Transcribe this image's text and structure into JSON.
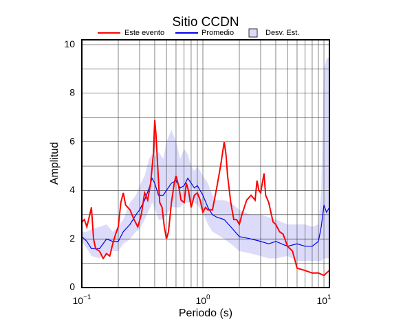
{
  "chart_data": {
    "type": "line",
    "title": "Sitio CCDN",
    "xlabel": "Periodo (s)",
    "ylabel": "Amplitud",
    "xscale": "log",
    "grid": true,
    "xlim": [
      0.1,
      11.1
    ],
    "ylim": [
      0,
      10.2
    ],
    "xticks": [
      {
        "value": 0.1,
        "label": "10",
        "exponent": "−1"
      },
      {
        "value": 1,
        "label": "10",
        "exponent": "0"
      },
      {
        "value": 10,
        "label": "10",
        "exponent": "1"
      }
    ],
    "xminor": [
      0.2,
      0.3,
      0.4,
      0.5,
      0.6,
      0.7,
      0.8,
      0.9,
      2,
      3,
      4,
      5,
      6,
      7,
      8,
      9
    ],
    "yticks": [
      0,
      2,
      4,
      6,
      8,
      10
    ],
    "yminor": [
      1,
      3,
      5,
      7,
      9
    ],
    "band": {
      "name": "Desv. Est.",
      "color": "#dcdcfa",
      "x": [
        0.1,
        0.11,
        0.12,
        0.14,
        0.16,
        0.18,
        0.2,
        0.22,
        0.25,
        0.28,
        0.3,
        0.33,
        0.36,
        0.38,
        0.4,
        0.43,
        0.47,
        0.5,
        0.55,
        0.6,
        0.65,
        0.7,
        0.75,
        0.8,
        0.85,
        0.9,
        1.0,
        1.1,
        1.2,
        1.3,
        1.5,
        1.7,
        2.0,
        2.5,
        3.0,
        3.5,
        4.0,
        5.0,
        6.0,
        7.0,
        8.0,
        9.0,
        9.5,
        10,
        10.5,
        11.1
      ],
      "upper": [
        2.3,
        2.3,
        2.4,
        2.5,
        2.6,
        2.3,
        2.5,
        2.8,
        3.5,
        3.8,
        4.2,
        4.6,
        5.3,
        5.5,
        5.4,
        5.6,
        5.3,
        6.0,
        6.5,
        6.0,
        5.3,
        5.7,
        5.5,
        5.0,
        4.8,
        5.0,
        4.6,
        4.3,
        3.8,
        3.6,
        3.6,
        3.5,
        3.2,
        3.0,
        3.0,
        2.9,
        2.8,
        2.6,
        2.6,
        2.6,
        2.5,
        2.6,
        4.0,
        9.0,
        9.4,
        9.5
      ],
      "lower": [
        1.9,
        1.6,
        1.3,
        1.2,
        1.4,
        1.5,
        1.5,
        1.8,
        2.0,
        2.3,
        2.4,
        2.8,
        3.2,
        3.5,
        3.3,
        2.8,
        2.8,
        3.0,
        3.3,
        3.3,
        3.3,
        3.5,
        3.5,
        3.5,
        3.5,
        3.4,
        3.1,
        2.6,
        2.3,
        2.2,
        2.0,
        1.8,
        1.5,
        1.4,
        1.3,
        1.2,
        1.2,
        1.3,
        1.1,
        1.1,
        1.1,
        1.1,
        1.1,
        1.2,
        1.2,
        1.2
      ]
    },
    "series": [
      {
        "name": "Este evento",
        "color": "#ff0000",
        "x": [
          0.1,
          0.105,
          0.11,
          0.115,
          0.12,
          0.125,
          0.13,
          0.14,
          0.15,
          0.16,
          0.17,
          0.18,
          0.19,
          0.2,
          0.21,
          0.22,
          0.23,
          0.25,
          0.27,
          0.29,
          0.31,
          0.33,
          0.35,
          0.37,
          0.39,
          0.4,
          0.41,
          0.42,
          0.44,
          0.46,
          0.48,
          0.5,
          0.52,
          0.55,
          0.58,
          0.6,
          0.63,
          0.66,
          0.7,
          0.73,
          0.76,
          0.8,
          0.85,
          0.9,
          0.95,
          1.0,
          1.05,
          1.1,
          1.2,
          1.3,
          1.4,
          1.5,
          1.55,
          1.6,
          1.7,
          1.8,
          1.9,
          2.0,
          2.1,
          2.3,
          2.5,
          2.7,
          2.8,
          2.9,
          3.0,
          3.2,
          3.3,
          3.5,
          3.8,
          4.0,
          4.3,
          4.6,
          5.0,
          5.5,
          6.0,
          7.0,
          8.0,
          9.0,
          10.0,
          10.5,
          11.1
        ],
        "values": [
          2.7,
          2.8,
          2.5,
          2.9,
          3.3,
          2.0,
          1.6,
          1.5,
          1.2,
          1.4,
          1.3,
          1.8,
          2.2,
          2.5,
          3.5,
          3.9,
          3.4,
          3.2,
          2.8,
          2.5,
          3.0,
          3.9,
          3.6,
          4.3,
          5.5,
          6.9,
          6.3,
          5.3,
          3.5,
          3.3,
          2.5,
          2.0,
          2.3,
          3.5,
          4.3,
          4.6,
          4.2,
          3.6,
          3.5,
          4.3,
          4.0,
          3.3,
          3.8,
          3.9,
          3.6,
          3.1,
          3.3,
          3.2,
          3.2,
          4.1,
          5.0,
          6.0,
          5.5,
          4.6,
          3.5,
          2.8,
          2.8,
          2.6,
          3.0,
          3.6,
          3.8,
          3.6,
          4.4,
          4.0,
          3.9,
          4.7,
          3.8,
          3.5,
          2.7,
          2.6,
          2.3,
          2.2,
          1.7,
          1.5,
          0.8,
          0.7,
          0.6,
          0.6,
          0.5,
          0.6,
          0.7
        ]
      },
      {
        "name": "Promedio",
        "color": "#0000ee",
        "x": [
          0.1,
          0.11,
          0.12,
          0.14,
          0.16,
          0.18,
          0.2,
          0.22,
          0.25,
          0.28,
          0.3,
          0.33,
          0.36,
          0.38,
          0.4,
          0.43,
          0.47,
          0.5,
          0.55,
          0.6,
          0.65,
          0.7,
          0.75,
          0.8,
          0.85,
          0.9,
          1.0,
          1.1,
          1.2,
          1.3,
          1.5,
          1.7,
          2.0,
          2.5,
          3.0,
          3.5,
          4.0,
          5.0,
          6.0,
          7.0,
          8.0,
          9.0,
          9.5,
          10,
          10.5,
          11.1
        ],
        "values": [
          2.1,
          1.9,
          1.6,
          1.6,
          2.0,
          1.9,
          1.9,
          2.3,
          2.6,
          3.0,
          3.2,
          3.6,
          4.1,
          4.5,
          4.3,
          3.8,
          3.8,
          4.0,
          4.3,
          4.4,
          4.1,
          4.2,
          4.5,
          4.3,
          4.1,
          4.2,
          3.8,
          3.3,
          3.0,
          2.9,
          2.8,
          2.5,
          2.1,
          2.0,
          1.9,
          1.8,
          1.9,
          1.7,
          1.8,
          1.7,
          1.7,
          1.9,
          2.5,
          3.4,
          3.1,
          3.3
        ]
      }
    ]
  }
}
